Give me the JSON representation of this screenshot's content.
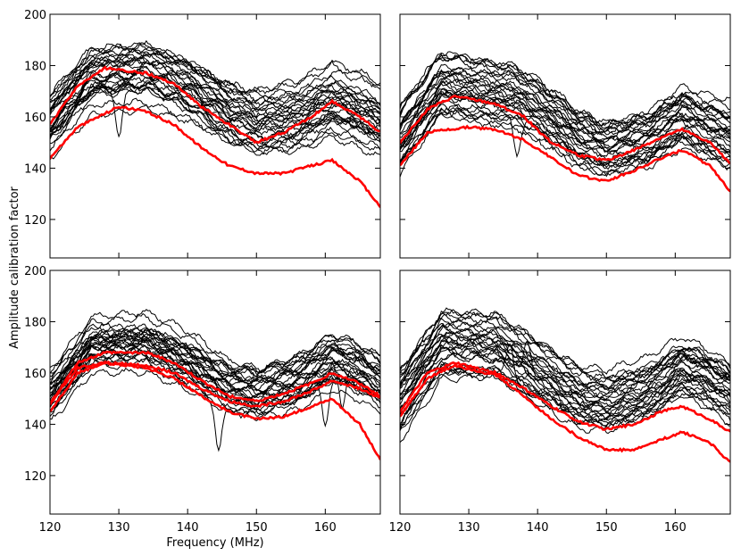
{
  "figure": {
    "ylabel": "Amplitude calibration factor",
    "xlabel": "Frequency (MHz)"
  },
  "chart_data": [
    {
      "type": "line",
      "panel": "top-left",
      "xlim": [
        120,
        168
      ],
      "ylim": [
        105,
        200
      ],
      "xticks": [
        120,
        130,
        140,
        150,
        160
      ],
      "yticks": [
        120,
        140,
        160,
        180,
        200
      ],
      "show_xtick_labels": false,
      "show_ytick_labels": true,
      "n_black": 30,
      "black_base": [
        [
          120,
          158
        ],
        [
          126,
          176
        ],
        [
          134,
          178
        ],
        [
          140,
          172
        ],
        [
          146,
          162
        ],
        [
          150,
          158
        ],
        [
          156,
          160
        ],
        [
          161,
          166
        ],
        [
          165,
          162
        ],
        [
          168,
          158
        ]
      ],
      "black_offsets": [
        -14,
        14
      ],
      "black_spikes": [
        {
          "x": 130,
          "dy": -20
        }
      ],
      "red_series": [
        {
          "name": "red-1",
          "points": [
            [
              120,
              157
            ],
            [
              124,
              172
            ],
            [
              128,
              179
            ],
            [
              134,
              177
            ],
            [
              138,
              173
            ],
            [
              142,
              164
            ],
            [
              146,
              157
            ],
            [
              150,
              150
            ],
            [
              154,
              154
            ],
            [
              158,
              160
            ],
            [
              161,
              166
            ],
            [
              165,
              160
            ],
            [
              168,
              154
            ]
          ]
        },
        {
          "name": "red-2",
          "points": [
            [
              120,
              144
            ],
            [
              124,
              156
            ],
            [
              130,
              164
            ],
            [
              134,
              162
            ],
            [
              138,
              157
            ],
            [
              142,
              148
            ],
            [
              146,
              141
            ],
            [
              150,
              138
            ],
            [
              154,
              138
            ],
            [
              158,
              141
            ],
            [
              161,
              143
            ],
            [
              165,
              135
            ],
            [
              168,
              125
            ]
          ]
        }
      ]
    },
    {
      "type": "line",
      "panel": "top-right",
      "xlim": [
        120,
        168
      ],
      "ylim": [
        105,
        200
      ],
      "xticks": [
        120,
        130,
        140,
        150,
        160
      ],
      "yticks": [
        120,
        140,
        160,
        180,
        200
      ],
      "show_xtick_labels": false,
      "show_ytick_labels": false,
      "n_black": 30,
      "black_base": [
        [
          120,
          152
        ],
        [
          126,
          173
        ],
        [
          132,
          170
        ],
        [
          137,
          168
        ],
        [
          142,
          160
        ],
        [
          146,
          152
        ],
        [
          150,
          148
        ],
        [
          156,
          152
        ],
        [
          161,
          160
        ],
        [
          165,
          155
        ],
        [
          168,
          152
        ]
      ],
      "black_offsets": [
        -14,
        14
      ],
      "black_spikes": [
        {
          "x": 137,
          "dy": -14
        }
      ],
      "red_series": [
        {
          "name": "red-1",
          "points": [
            [
              120,
              150
            ],
            [
              124,
              163
            ],
            [
              128,
              168
            ],
            [
              134,
              165
            ],
            [
              138,
              160
            ],
            [
              142,
              150
            ],
            [
              146,
              145
            ],
            [
              150,
              143
            ],
            [
              154,
              147
            ],
            [
              158,
              152
            ],
            [
              161,
              155
            ],
            [
              165,
              150
            ],
            [
              168,
              142
            ]
          ]
        },
        {
          "name": "red-2",
          "points": [
            [
              120,
              141
            ],
            [
              124,
              154
            ],
            [
              130,
              156
            ],
            [
              134,
              155
            ],
            [
              138,
              151
            ],
            [
              142,
              144
            ],
            [
              146,
              137
            ],
            [
              150,
              135
            ],
            [
              154,
              139
            ],
            [
              158,
              144
            ],
            [
              161,
              147
            ],
            [
              165,
              141
            ],
            [
              168,
              131
            ]
          ]
        }
      ]
    },
    {
      "type": "line",
      "panel": "bottom-left",
      "xlim": [
        120,
        168
      ],
      "ylim": [
        105,
        200
      ],
      "xticks": [
        120,
        130,
        140,
        150,
        160
      ],
      "yticks": [
        120,
        140,
        160,
        180,
        200
      ],
      "show_xtick_labels": true,
      "show_ytick_labels": true,
      "n_black": 30,
      "black_base": [
        [
          120,
          150
        ],
        [
          126,
          170
        ],
        [
          134,
          171
        ],
        [
          140,
          164
        ],
        [
          146,
          154
        ],
        [
          150,
          152
        ],
        [
          156,
          156
        ],
        [
          161,
          164
        ],
        [
          165,
          160
        ],
        [
          168,
          155
        ]
      ],
      "black_offsets": [
        -10,
        12
      ],
      "black_spikes": [
        {
          "x": 144.5,
          "dy": -20
        },
        {
          "x": 160,
          "dy": -18
        },
        {
          "x": 162.5,
          "dy": -16
        }
      ],
      "red_series": [
        {
          "name": "red-1",
          "points": [
            [
              120,
              148
            ],
            [
              124,
              164
            ],
            [
              128,
              168
            ],
            [
              134,
              168
            ],
            [
              138,
              164
            ],
            [
              142,
              157
            ],
            [
              146,
              151
            ],
            [
              150,
              149
            ],
            [
              154,
              152
            ],
            [
              158,
              156
            ],
            [
              161,
              160
            ],
            [
              165,
              156
            ],
            [
              168,
              151
            ]
          ]
        },
        {
          "name": "red-2",
          "points": [
            [
              120,
              148
            ],
            [
              124,
              162
            ],
            [
              128,
              164
            ],
            [
              134,
              162
            ],
            [
              138,
              158
            ],
            [
              142,
              151
            ],
            [
              146,
              145
            ],
            [
              150,
              142
            ],
            [
              154,
              143
            ],
            [
              158,
              147
            ],
            [
              161,
              150
            ],
            [
              165,
              140
            ],
            [
              168,
              126
            ]
          ]
        },
        {
          "name": "red-3",
          "points": [
            [
              120,
              145
            ],
            [
              124,
              160
            ],
            [
              128,
              164
            ],
            [
              134,
              163
            ],
            [
              138,
              160
            ],
            [
              142,
              154
            ],
            [
              146,
              149
            ],
            [
              150,
              147
            ],
            [
              154,
              149
            ],
            [
              158,
              153
            ],
            [
              161,
              157
            ],
            [
              165,
              154
            ],
            [
              168,
              150
            ]
          ]
        }
      ]
    },
    {
      "type": "line",
      "panel": "bottom-right",
      "xlim": [
        120,
        168
      ],
      "ylim": [
        105,
        200
      ],
      "xticks": [
        120,
        130,
        140,
        150,
        160
      ],
      "yticks": [
        120,
        140,
        160,
        180,
        200
      ],
      "show_xtick_labels": true,
      "show_ytick_labels": false,
      "n_black": 30,
      "black_base": [
        [
          120,
          150
        ],
        [
          126,
          172
        ],
        [
          134,
          170
        ],
        [
          140,
          160
        ],
        [
          146,
          150
        ],
        [
          150,
          148
        ],
        [
          156,
          153
        ],
        [
          161,
          162
        ],
        [
          165,
          158
        ],
        [
          168,
          153
        ]
      ],
      "black_offsets": [
        -14,
        14
      ],
      "black_spikes": [
        {
          "x": 136,
          "dy": 12
        },
        {
          "x": 138.5,
          "dy": 14
        }
      ],
      "red_series": [
        {
          "name": "red-1",
          "points": [
            [
              120,
              145
            ],
            [
              124,
              160
            ],
            [
              128,
              164
            ],
            [
              134,
              160
            ],
            [
              138,
              154
            ],
            [
              142,
              147
            ],
            [
              146,
              141
            ],
            [
              150,
              138
            ],
            [
              154,
              140
            ],
            [
              158,
              145
            ],
            [
              161,
              147
            ],
            [
              165,
              142
            ],
            [
              168,
              137
            ]
          ]
        },
        {
          "name": "red-2",
          "points": [
            [
              120,
              143
            ],
            [
              124,
              158
            ],
            [
              128,
              163
            ],
            [
              134,
              159
            ],
            [
              138,
              151
            ],
            [
              142,
              142
            ],
            [
              146,
              135
            ],
            [
              150,
              130
            ],
            [
              154,
              130
            ],
            [
              158,
              134
            ],
            [
              161,
              137
            ],
            [
              165,
              133
            ],
            [
              168,
              125
            ]
          ]
        }
      ]
    }
  ]
}
